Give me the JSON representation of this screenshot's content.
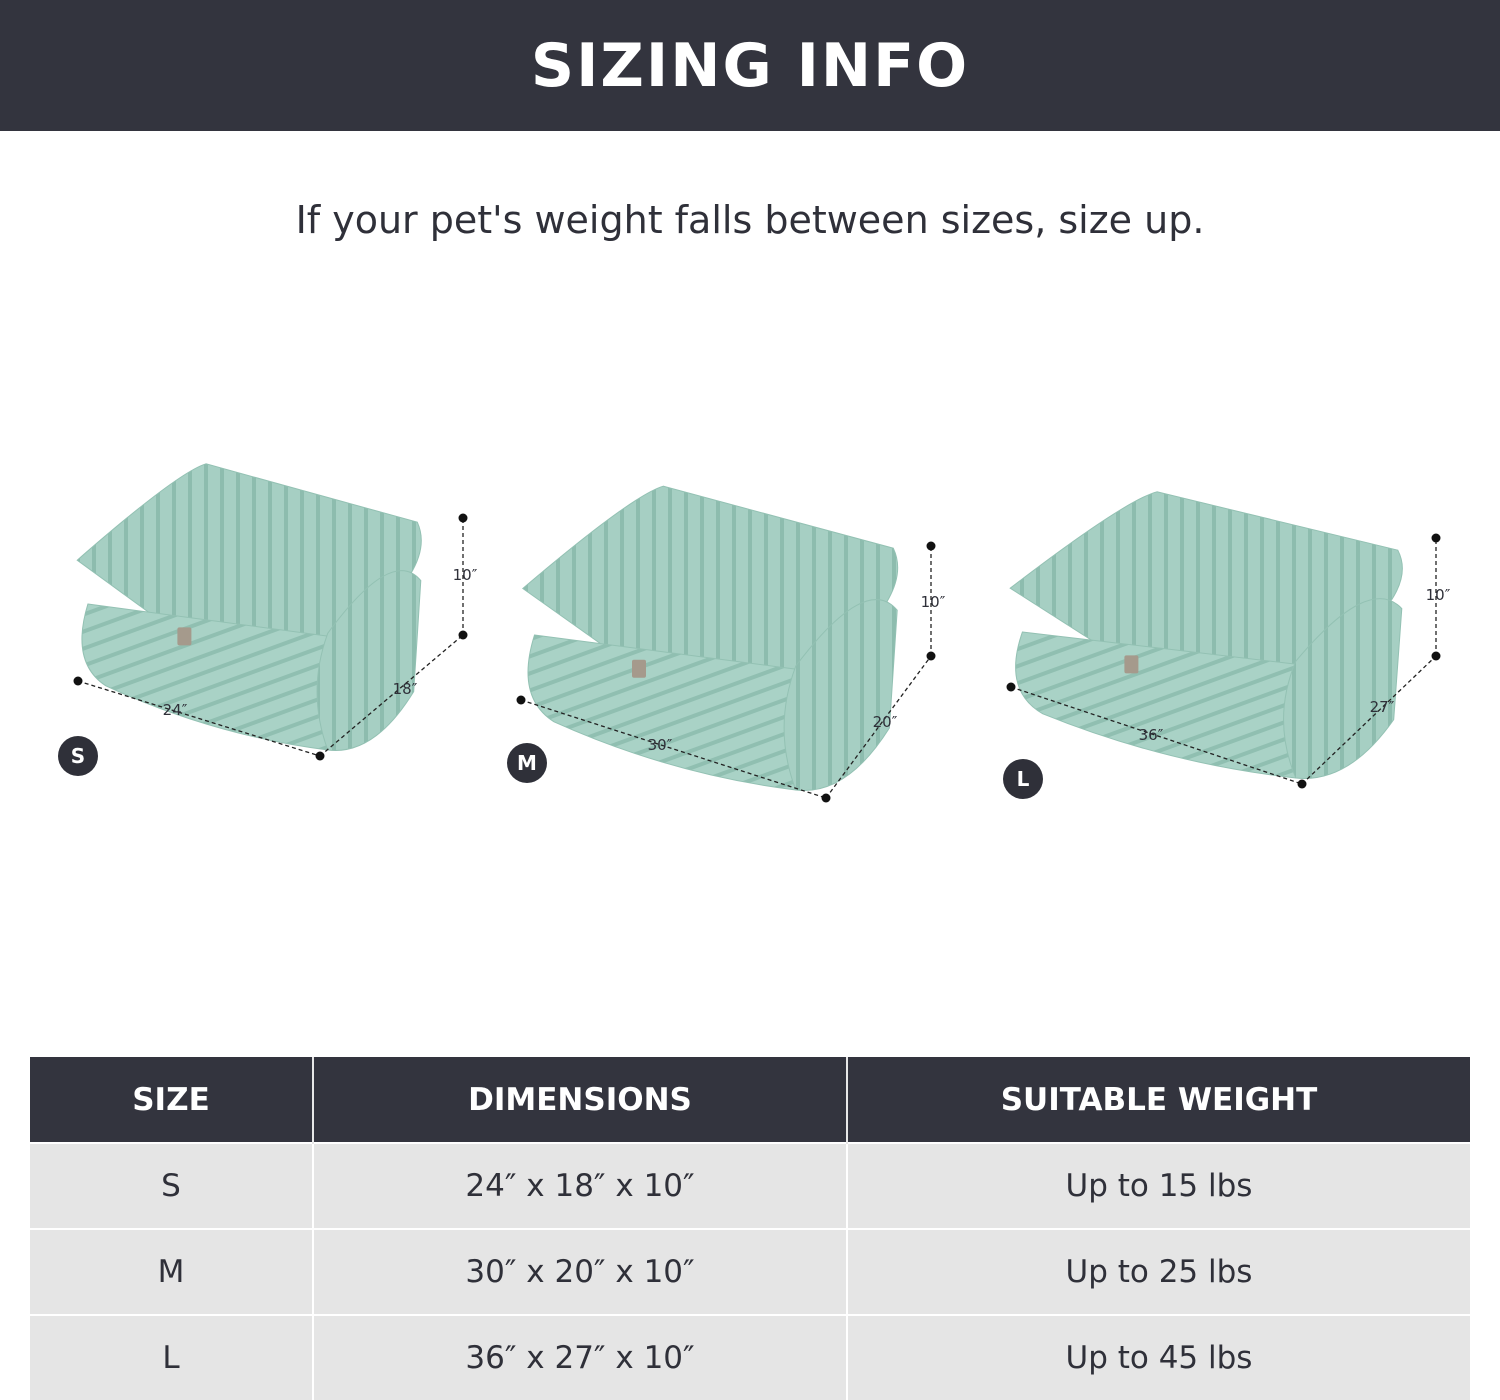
{
  "header": {
    "title": "SIZING INFO"
  },
  "subtitle": "If your pet's weight falls between sizes, size up.",
  "colors": {
    "banner": "#33343e",
    "bed": "#a6cfc3",
    "row": "#e5e5e5"
  },
  "beds": [
    {
      "size": "S",
      "width": "24″",
      "depth": "18″",
      "height": "10″"
    },
    {
      "size": "M",
      "width": "30″",
      "depth": "20″",
      "height": "10″"
    },
    {
      "size": "L",
      "width": "36″",
      "depth": "27″",
      "height": "10″"
    }
  ],
  "table": {
    "headers": [
      "SIZE",
      "DIMENSIONS",
      "SUITABLE WEIGHT"
    ],
    "rows": [
      [
        "S",
        "24″ x 18″ x 10″",
        "Up to 15 lbs"
      ],
      [
        "M",
        "30″ x 20″ x 10″",
        "Up to 25 lbs"
      ],
      [
        "L",
        "36″ x 27″ x 10″",
        "Up to 45 lbs"
      ]
    ]
  }
}
